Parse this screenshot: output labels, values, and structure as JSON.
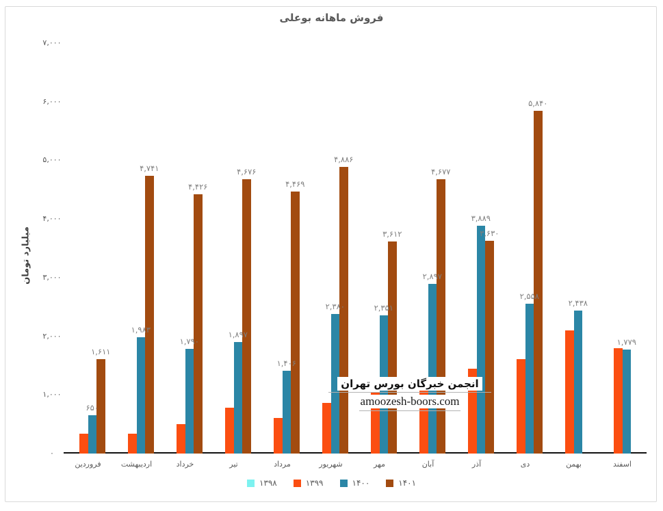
{
  "watermark": {
    "line1": "انجمن خبرگان بورس تهران",
    "line2": "amoozesh-boors.com"
  },
  "colors": {
    "title_text": "#595959",
    "tick_text": "#595959",
    "data_label_text": "#7f7f7f",
    "axis_line": "#111111",
    "card_border": "#d9d9d9"
  },
  "chart_data": {
    "type": "bar",
    "title": "فروش ماهانه بوعلی",
    "xlabel": "",
    "ylabel": "میلیارد تومان",
    "ylim": [
      0,
      7000
    ],
    "grid": false,
    "legend_position": "bottom",
    "y_ticks": {
      "values": [
        0,
        1000,
        2000,
        3000,
        4000,
        5000,
        6000,
        7000
      ],
      "labels": [
        "۰",
        "۱,۰۰۰",
        "۲,۰۰۰",
        "۳,۰۰۰",
        "۴,۰۰۰",
        "۵,۰۰۰",
        "۶,۰۰۰",
        "۷,۰۰۰"
      ]
    },
    "categories": [
      "فروردین",
      "اردیبهشت",
      "خرداد",
      "تیر",
      "مرداد",
      "شهریور",
      "مهر",
      "آبان",
      "آذر",
      "دی",
      "بهمن",
      "اسفند"
    ],
    "series": [
      {
        "name": "۱۳۹۸",
        "color": "#7df2f0",
        "values": [
          null,
          null,
          null,
          null,
          null,
          null,
          null,
          null,
          null,
          null,
          null,
          null
        ],
        "labels": [
          null,
          null,
          null,
          null,
          null,
          null,
          null,
          null,
          null,
          null,
          null,
          null
        ]
      },
      {
        "name": "۱۳۹۹",
        "color": "#fb4e11",
        "values": [
          340,
          335,
          500,
          780,
          610,
          860,
          1050,
          1180,
          1450,
          1610,
          2100,
          1800
        ],
        "labels": [
          null,
          null,
          null,
          null,
          null,
          null,
          null,
          null,
          null,
          null,
          null,
          null
        ]
      },
      {
        "name": "۱۴۰۰",
        "color": "#2b86a6",
        "values": [
          650,
          1983,
          1790,
          1897,
          1406,
          2380,
          2351,
          2897,
          3889,
          2558,
          2438,
          1779
        ],
        "labels": [
          "۶۵۰",
          "۱,۹۸۳",
          "۱,۷۹۰",
          "۱,۸۹۷",
          "۱,۴۰۶",
          "۲,۳۸۰",
          "۲,۳۵۱",
          "۲,۸۹۷",
          "۳,۸۸۹",
          "۲,۵۵۸",
          "۲,۴۳۸",
          "۱,۷۷۹"
        ]
      },
      {
        "name": "۱۴۰۱",
        "color": "#a24b10",
        "values": [
          1611,
          4741,
          4426,
          4676,
          4469,
          4886,
          3612,
          4677,
          3630,
          5840,
          null,
          null
        ],
        "labels": [
          "۱,۶۱۱",
          "۴,۷۴۱",
          "۴,۴۲۶",
          "۴,۶۷۶",
          "۴,۴۶۹",
          "۴,۸۸۶",
          "۳,۶۱۲",
          "۴,۶۷۷",
          "۳,۶۳۰",
          "۵,۸۴۰",
          null,
          null
        ]
      }
    ]
  }
}
